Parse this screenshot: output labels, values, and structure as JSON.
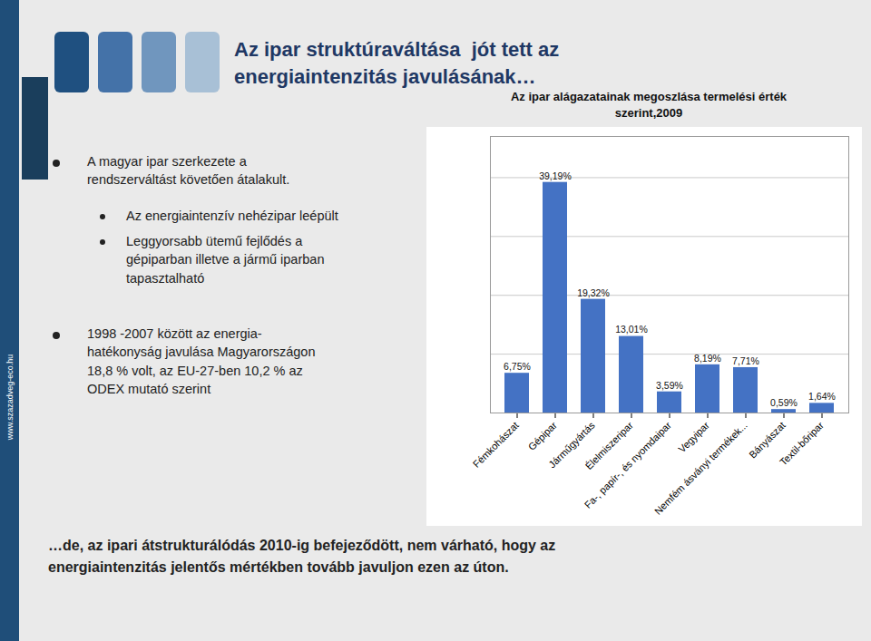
{
  "chart_data": {
    "type": "bar",
    "title": "Az ipar alágazatainak megoszlása termelési érték\nszerint,2009",
    "categories": [
      "Fémkohászat",
      "Gépipar",
      "Járműgyártás",
      "Élelmiszeripar",
      "Fa-, papír-, és nyomdaipar",
      "Vegyipar",
      "Nemfém ásványi termékek...",
      "Bányászat",
      "Textil-bőripar"
    ],
    "values": [
      6.75,
      39.19,
      19.32,
      13.01,
      3.59,
      8.19,
      7.71,
      0.59,
      1.64
    ],
    "value_labels": [
      "6,75%",
      "39,19%",
      "19,32%",
      "13,01%",
      "3,59%",
      "8,19%",
      "7,71%",
      "0,59%",
      "1,64%"
    ],
    "color": "#4472C4",
    "ylim": [
      0,
      47
    ],
    "yticks": [
      10,
      20,
      30,
      40
    ],
    "grid": true,
    "data_labels": true,
    "tick_labels": "x",
    "annotations": [
      "Az ipar struktúraváltása  jót tett az\nenergiaintenzitás javulásának…",
      "A magyar ipar szerkezete a\nrendszerváltást követően átalakult.",
      "Az energiaintenzív nehézipar leépült",
      "Leggyorsabb ütemű fejlődés a\ngépiparban illetve a jármű iparban\ntapasztalható",
      "1998 -2007 között az energia-\nhatékonyság javulása Magyarországon\n18,8 % volt, az EU-27-ben 10,2 % az\nODEX mutató szerint",
      "…de, az ipari átstrukturálódás 2010-ig befejeződött, nem várható, hogy az\nenergiaintenzitás jelentős mértékben tovább javuljon ezen az úton.",
      "www.szazadveg-eco.hu"
    ]
  }
}
